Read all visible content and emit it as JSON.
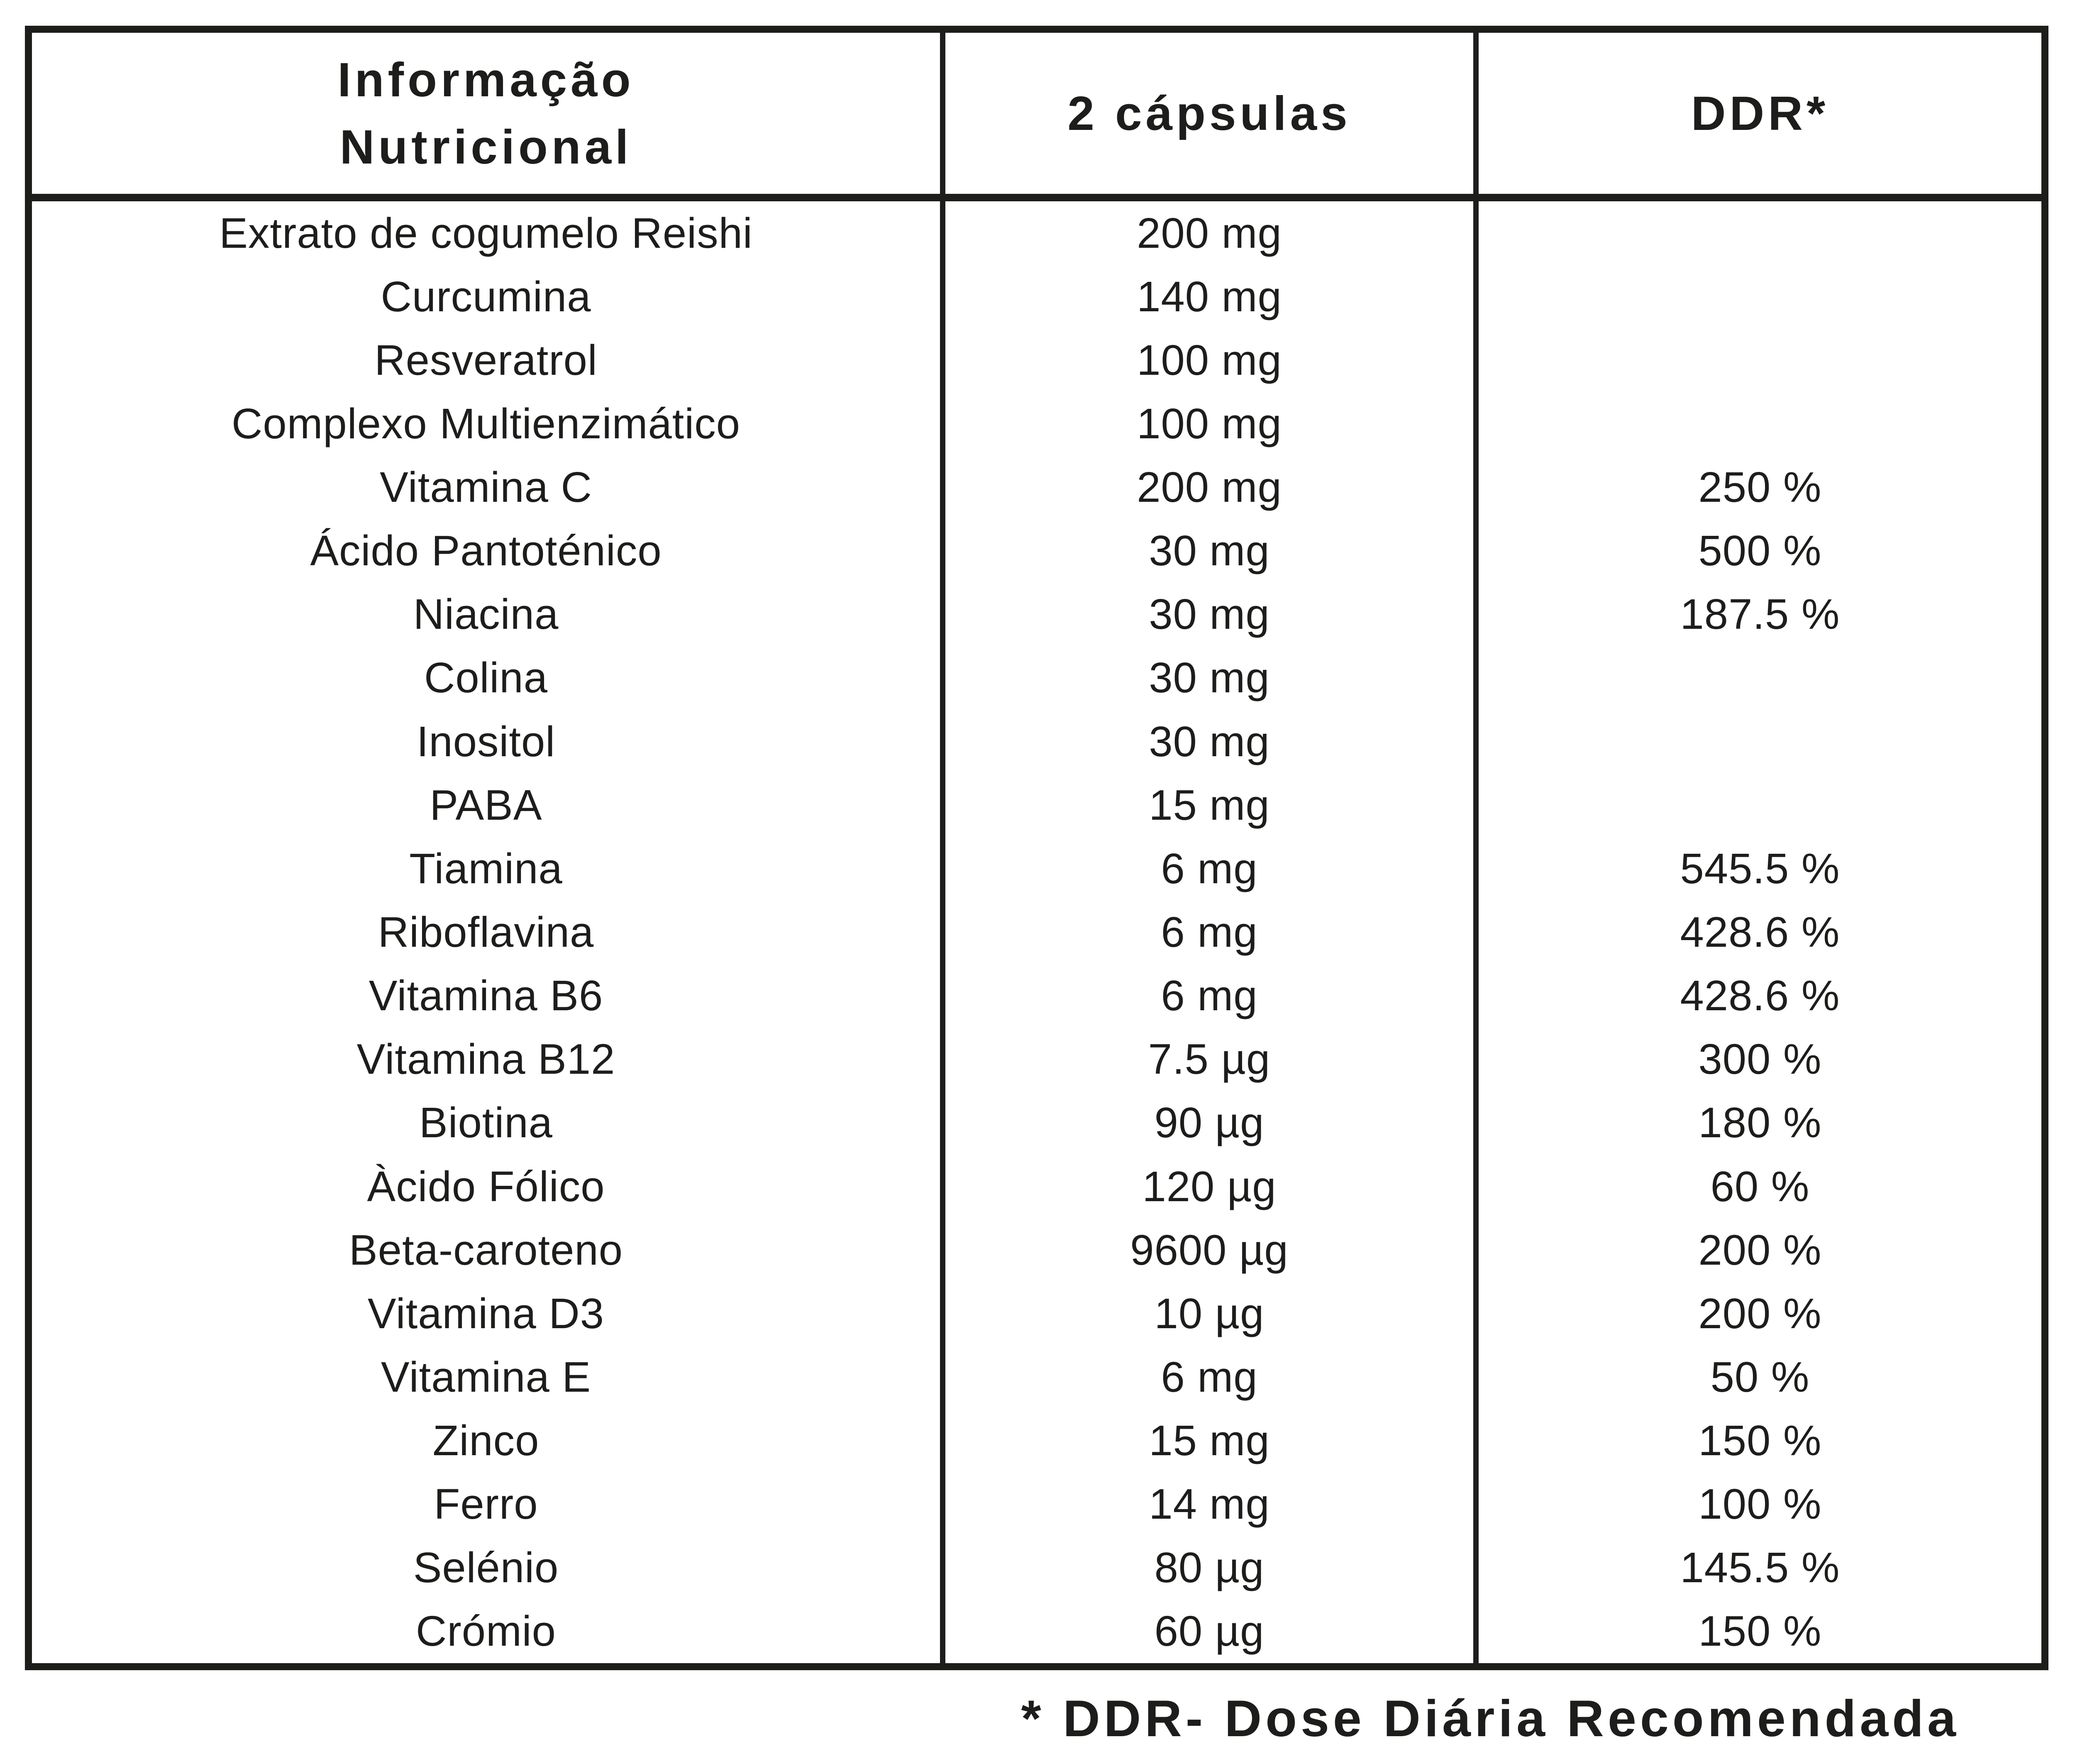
{
  "colors": {
    "text": "#1d1d1b",
    "border": "#1d1d1b",
    "background": "#ffffff"
  },
  "table": {
    "header": {
      "col1_line1": "Informação",
      "col1_line2": "Nutricional",
      "col2": "2 cápsulas",
      "col3": "DDR*"
    },
    "rows": [
      {
        "name": "Extrato de cogumelo Reishi",
        "amount": "200 mg",
        "ddr": ""
      },
      {
        "name": "Curcumina",
        "amount": "140 mg",
        "ddr": ""
      },
      {
        "name": "Resveratrol",
        "amount": "100 mg",
        "ddr": ""
      },
      {
        "name": "Complexo Multienzimático",
        "amount": "100 mg",
        "ddr": ""
      },
      {
        "name": "Vitamina C",
        "amount": "200 mg",
        "ddr": "250 %"
      },
      {
        "name": "Ácido Pantoténico",
        "amount": "30 mg",
        "ddr": "500 %"
      },
      {
        "name": "Niacina",
        "amount": "30 mg",
        "ddr": "187.5 %"
      },
      {
        "name": "Colina",
        "amount": "30 mg",
        "ddr": ""
      },
      {
        "name": "Inositol",
        "amount": "30 mg",
        "ddr": ""
      },
      {
        "name": "PABA",
        "amount": "15 mg",
        "ddr": ""
      },
      {
        "name": "Tiamina",
        "amount": "6 mg",
        "ddr": "545.5 %"
      },
      {
        "name": "Riboflavina",
        "amount": "6 mg",
        "ddr": "428.6 %"
      },
      {
        "name": "Vitamina B6",
        "amount": "6 mg",
        "ddr": "428.6 %"
      },
      {
        "name": "Vitamina B12",
        "amount": "7.5 µg",
        "ddr": "300 %"
      },
      {
        "name": "Biotina",
        "amount": "90 µg",
        "ddr": "180 %"
      },
      {
        "name": "Àcido Fólico",
        "amount": "120 µg",
        "ddr": "60 %"
      },
      {
        "name": "Beta-caroteno",
        "amount": "9600 µg",
        "ddr": "200 %"
      },
      {
        "name": "Vitamina D3",
        "amount": "10 µg",
        "ddr": "200 %"
      },
      {
        "name": "Vitamina E",
        "amount": "6 mg",
        "ddr": "50 %"
      },
      {
        "name": "Zinco",
        "amount": "15 mg",
        "ddr": "150 %"
      },
      {
        "name": "Ferro",
        "amount": "14 mg",
        "ddr": "100 %"
      },
      {
        "name": "Selénio",
        "amount": "80 µg",
        "ddr": "145.5 %"
      },
      {
        "name": "Crómio",
        "amount": "60 µg",
        "ddr": "150 %"
      }
    ],
    "footnote": "* DDR- Dose Diária Recomendada"
  }
}
